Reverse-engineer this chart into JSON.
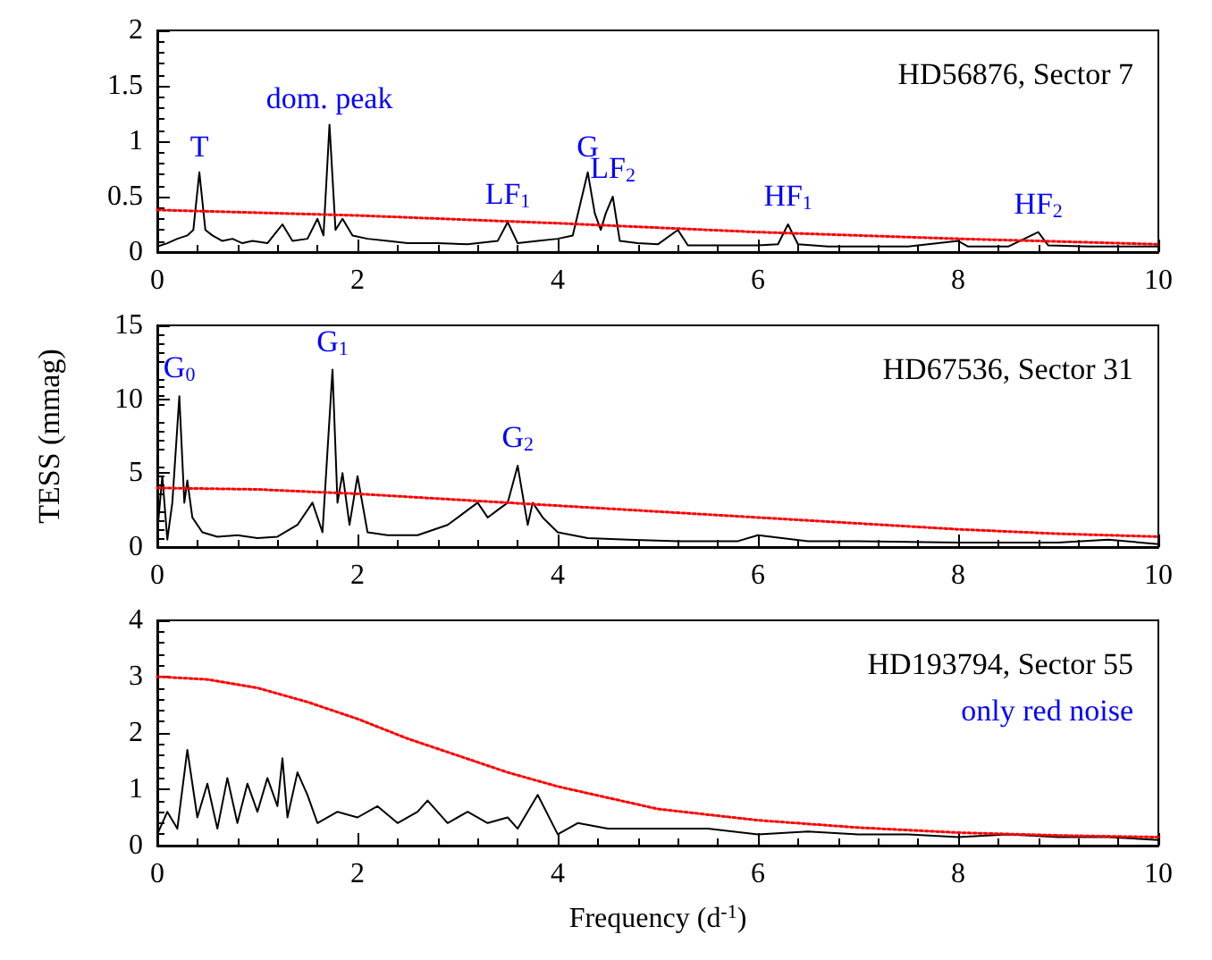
{
  "chart_data": [
    {
      "type": "line",
      "title": "HD56876, Sector 7",
      "xlim": [
        0,
        10
      ],
      "xticks": [
        0,
        2,
        4,
        6,
        8,
        10
      ],
      "ylim": [
        0,
        2
      ],
      "yticks": [
        0,
        0.5,
        1,
        1.5,
        2
      ],
      "marker": "none",
      "series": [
        {
          "color": "#000000",
          "line_style": "solid",
          "x": [
            0,
            0.1,
            0.2,
            0.3,
            0.36,
            0.42,
            0.48,
            0.55,
            0.65,
            0.75,
            0.85,
            0.95,
            1.1,
            1.25,
            1.35,
            1.5,
            1.6,
            1.66,
            1.72,
            1.78,
            1.85,
            1.95,
            2.1,
            2.3,
            2.5,
            2.8,
            3.1,
            3.4,
            3.5,
            3.6,
            3.8,
            4.0,
            4.15,
            4.3,
            4.37,
            4.43,
            4.48,
            4.55,
            4.62,
            4.8,
            5.0,
            5.2,
            5.3,
            5.6,
            6.0,
            6.2,
            6.3,
            6.4,
            6.7,
            7.0,
            7.5,
            8.0,
            8.1,
            8.5,
            8.8,
            8.9,
            9.3,
            9.7,
            10
          ],
          "values": [
            0.05,
            0.08,
            0.12,
            0.15,
            0.2,
            0.72,
            0.2,
            0.15,
            0.1,
            0.12,
            0.08,
            0.1,
            0.08,
            0.25,
            0.1,
            0.12,
            0.3,
            0.15,
            1.15,
            0.2,
            0.3,
            0.15,
            0.12,
            0.1,
            0.08,
            0.08,
            0.07,
            0.1,
            0.27,
            0.08,
            0.1,
            0.12,
            0.15,
            0.72,
            0.35,
            0.2,
            0.35,
            0.5,
            0.1,
            0.08,
            0.07,
            0.2,
            0.06,
            0.06,
            0.06,
            0.07,
            0.25,
            0.07,
            0.05,
            0.05,
            0.05,
            0.1,
            0.05,
            0.05,
            0.18,
            0.06,
            0.05,
            0.05,
            0.05
          ]
        },
        {
          "color": "#ff0000",
          "line_style": "dotted",
          "x": [
            0,
            2,
            4,
            6,
            8,
            10
          ],
          "values": [
            0.38,
            0.33,
            0.26,
            0.18,
            0.12,
            0.07
          ]
        }
      ],
      "annotations": [
        {
          "text": "T",
          "x": 0.42,
          "y": 0.72
        },
        {
          "text": "dom. peak",
          "x": 1.72,
          "y": 1.15
        },
        {
          "text": "LF$_{1}$",
          "x": 3.5,
          "y": 0.27
        },
        {
          "text": "G",
          "x": 4.3,
          "y": 0.72
        },
        {
          "text": "LF$_{2}$",
          "x": 4.55,
          "y": 0.5
        },
        {
          "text": "HF$_{1}$",
          "x": 6.3,
          "y": 0.25
        },
        {
          "text": "HF$_{2}$",
          "x": 8.8,
          "y": 0.18
        }
      ]
    },
    {
      "type": "line",
      "title": "HD67536, Sector 31",
      "ylabel": "TESS (mmag)",
      "xlim": [
        0,
        10
      ],
      "xticks": [
        0,
        2,
        4,
        6,
        8,
        10
      ],
      "ylim": [
        0,
        15
      ],
      "yticks": [
        0,
        5,
        10,
        15
      ],
      "marker": "none",
      "series": [
        {
          "color": "#000000",
          "line_style": "solid",
          "x": [
            0,
            0.05,
            0.1,
            0.15,
            0.22,
            0.27,
            0.3,
            0.35,
            0.45,
            0.6,
            0.8,
            1.0,
            1.2,
            1.4,
            1.55,
            1.65,
            1.75,
            1.8,
            1.85,
            1.92,
            2.0,
            2.1,
            2.3,
            2.6,
            2.9,
            3.1,
            3.2,
            3.3,
            3.4,
            3.5,
            3.6,
            3.7,
            3.75,
            3.85,
            4.0,
            4.3,
            4.7,
            5.2,
            5.8,
            6.0,
            6.5,
            7.0,
            8.0,
            9.0,
            9.5,
            10
          ],
          "values": [
            1,
            4.8,
            0.5,
            3,
            10.2,
            3,
            4.5,
            2,
            1,
            0.7,
            0.8,
            0.6,
            0.7,
            1.5,
            3,
            1,
            12,
            3,
            5,
            1.5,
            4.8,
            1,
            0.8,
            0.8,
            1.5,
            2.5,
            3,
            2,
            2.5,
            3,
            5.5,
            1.5,
            3,
            2,
            1,
            0.6,
            0.5,
            0.4,
            0.4,
            0.8,
            0.4,
            0.4,
            0.3,
            0.3,
            0.5,
            0.2
          ]
        },
        {
          "color": "#ff0000",
          "line_style": "dotted",
          "x": [
            0,
            1,
            2,
            3,
            4,
            5,
            6,
            7,
            8,
            9,
            10
          ],
          "values": [
            4,
            3.9,
            3.6,
            3.2,
            2.8,
            2.4,
            2,
            1.6,
            1.2,
            0.9,
            0.7
          ]
        }
      ],
      "annotations": [
        {
          "text": "G$_{0}$",
          "x": 0.22,
          "y": 10.2
        },
        {
          "text": "G$_{1}$",
          "x": 1.75,
          "y": 12
        },
        {
          "text": "G$_{2}$",
          "x": 3.6,
          "y": 5.5
        }
      ]
    },
    {
      "type": "line",
      "title": "HD193794, Sector 55",
      "xlabel": "Frequency (d$^{-1}$)",
      "xlim": [
        0,
        10
      ],
      "xticks": [
        0,
        2,
        4,
        6,
        8,
        10
      ],
      "ylim": [
        0,
        4
      ],
      "yticks": [
        0,
        1,
        2,
        3,
        4
      ],
      "marker": "none",
      "series": [
        {
          "color": "#000000",
          "line_style": "solid",
          "x": [
            0,
            0.1,
            0.2,
            0.3,
            0.4,
            0.5,
            0.6,
            0.7,
            0.8,
            0.9,
            1.0,
            1.1,
            1.2,
            1.25,
            1.3,
            1.4,
            1.5,
            1.6,
            1.8,
            2.0,
            2.2,
            2.4,
            2.6,
            2.7,
            2.9,
            3.1,
            3.3,
            3.5,
            3.6,
            3.8,
            4.0,
            4.2,
            4.5,
            5,
            5.5,
            6,
            6.5,
            7,
            7.5,
            8,
            8.5,
            9,
            9.5,
            10
          ],
          "values": [
            0.2,
            0.6,
            0.3,
            1.7,
            0.5,
            1.1,
            0.3,
            1.2,
            0.4,
            1.1,
            0.6,
            1.2,
            0.7,
            1.55,
            0.5,
            1.3,
            0.9,
            0.4,
            0.6,
            0.5,
            0.7,
            0.4,
            0.6,
            0.8,
            0.4,
            0.6,
            0.4,
            0.5,
            0.3,
            0.9,
            0.2,
            0.4,
            0.3,
            0.3,
            0.3,
            0.2,
            0.25,
            0.2,
            0.2,
            0.15,
            0.2,
            0.15,
            0.15,
            0.1
          ]
        },
        {
          "color": "#ff0000",
          "line_style": "dotted",
          "x": [
            0,
            0.5,
            1,
            1.5,
            2,
            2.5,
            3,
            3.5,
            4,
            4.5,
            5,
            6,
            7,
            8,
            9,
            10
          ],
          "values": [
            3,
            2.95,
            2.8,
            2.55,
            2.25,
            1.9,
            1.6,
            1.3,
            1.05,
            0.85,
            0.65,
            0.45,
            0.32,
            0.23,
            0.18,
            0.15
          ]
        }
      ],
      "annotations": [
        "only red noise"
      ]
    }
  ]
}
